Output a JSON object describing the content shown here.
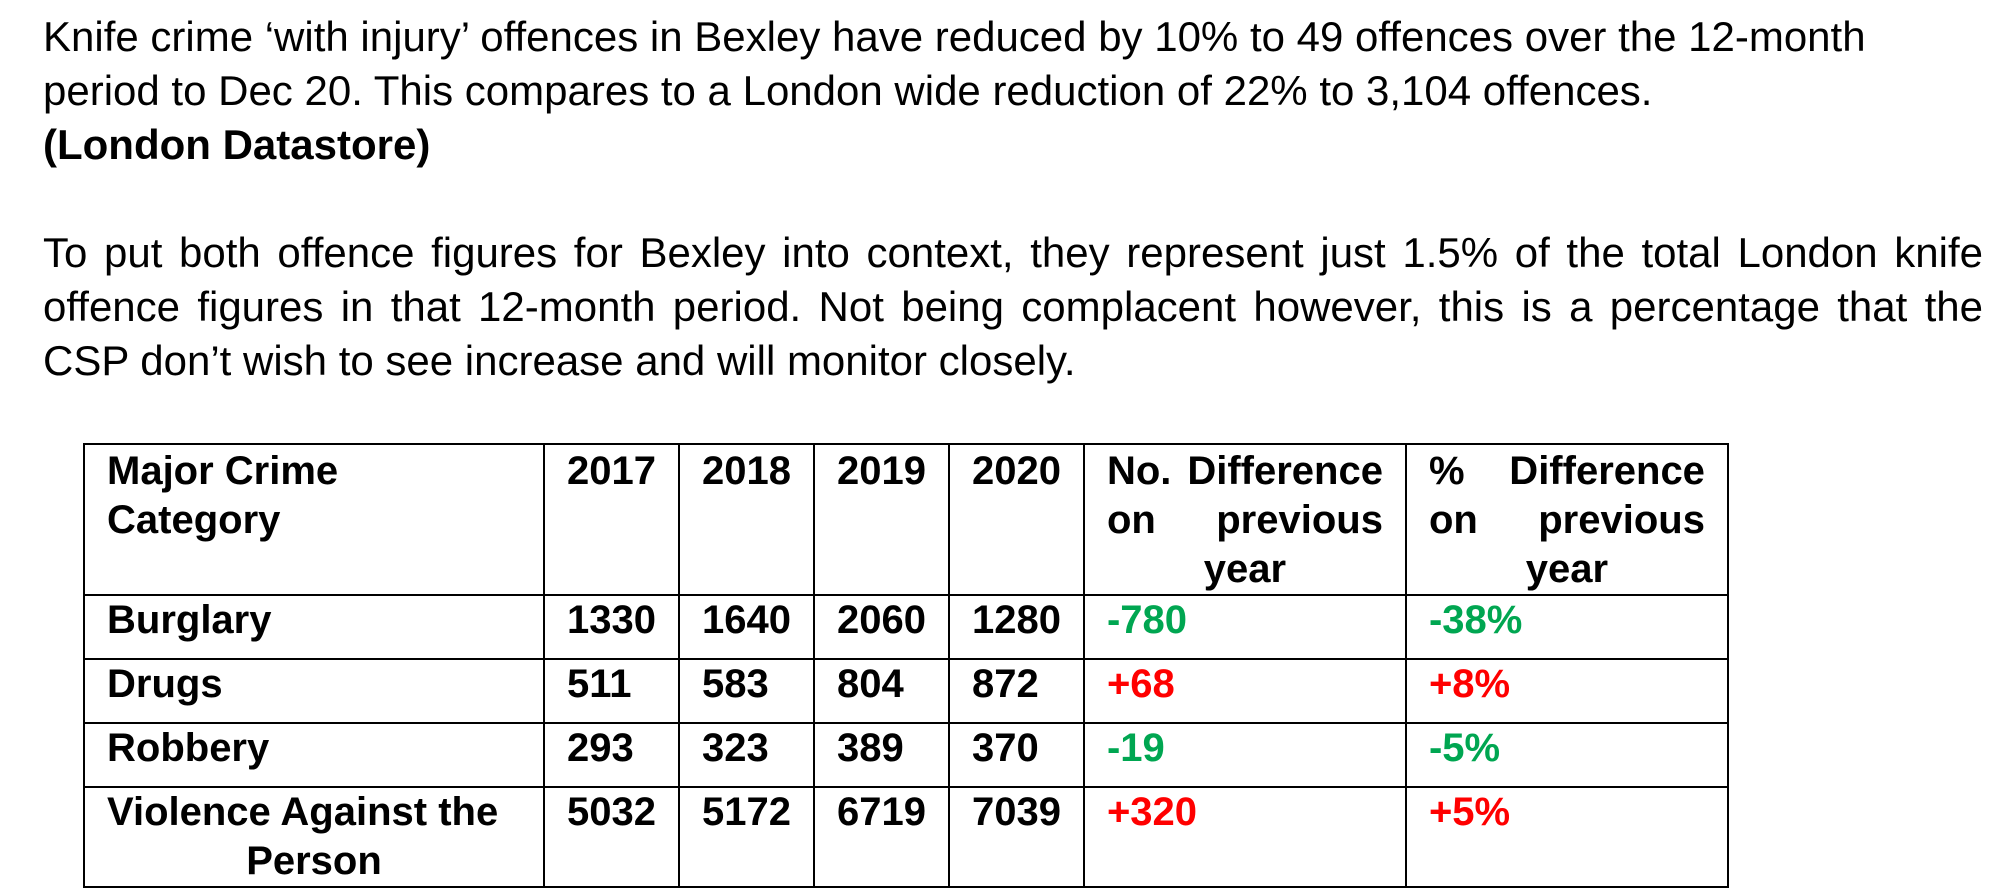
{
  "paragraphs": {
    "p1": "Knife crime ‘with injury’ offences in Bexley have reduced by 10% to 49 offences over the 12-month period to Dec 20.  This compares to a London wide reduction of 22% to 3,104 offences.",
    "p1_source": "(London Datastore)",
    "p2": "To put both offence figures for Bexley into context, they represent just 1.5% of the total London knife offence figures in that 12-month period. Not being complacent however, this is a percentage that the CSP don’t wish to see increase and will monitor closely."
  },
  "table": {
    "headers": {
      "category": "Major Crime Category",
      "y2017": "2017",
      "y2018": "2018",
      "y2019": "2019",
      "y2020": "2020",
      "num_diff": "No. Difference on previous year",
      "pct_diff": "% Difference on previous year"
    },
    "rows": [
      {
        "category": "Burglary",
        "y2017": "1330",
        "y2018": "1640",
        "y2019": "2060",
        "y2020": "1280",
        "num_diff": "-780",
        "pct_diff": "-38%"
      },
      {
        "category": "Drugs",
        "y2017": "511",
        "y2018": "583",
        "y2019": "804",
        "y2020": "872",
        "num_diff": "+68",
        "pct_diff": "+8%"
      },
      {
        "category": "Robbery",
        "y2017": "293",
        "y2018": "323",
        "y2019": "389",
        "y2020": "370",
        "num_diff": "-19",
        "pct_diff": "-5%"
      },
      {
        "category": "Violence Against the Person",
        "y2017": "5032",
        "y2018": "5172",
        "y2019": "6719",
        "y2020": "7039",
        "num_diff": "+320",
        "pct_diff": "+5%"
      }
    ]
  },
  "colors": {
    "decrease": "#00a651",
    "increase": "#ff0000"
  }
}
